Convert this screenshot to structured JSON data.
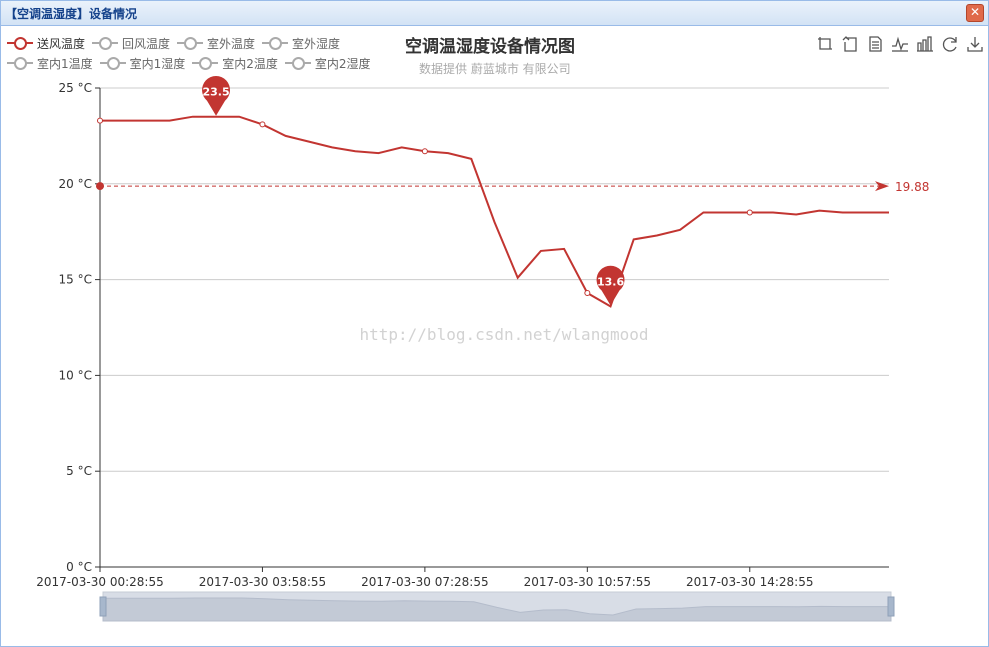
{
  "window": {
    "title": "【空调温湿度】设备情况",
    "close_icon": "close-icon"
  },
  "legend": {
    "items": [
      {
        "label": "送风温度",
        "active": true
      },
      {
        "label": "回风温度",
        "active": false
      },
      {
        "label": "室外温度",
        "active": false
      },
      {
        "label": "室外湿度",
        "active": false
      },
      {
        "label": "室内1温度",
        "active": false
      },
      {
        "label": "室内1湿度",
        "active": false
      },
      {
        "label": "室内2温度",
        "active": false
      },
      {
        "label": "室内2湿度",
        "active": false
      }
    ]
  },
  "toolbox": [
    "data-zoom-icon",
    "zoom-reset-icon",
    "data-view-icon",
    "line-chart-icon",
    "bar-chart-icon",
    "restore-icon",
    "save-image-icon"
  ],
  "watermark": "http://blog.csdn.net/wlangmood",
  "colors": {
    "series": "#c23531",
    "axis": "#333333",
    "grid": "#cccccc"
  },
  "chart_data": {
    "type": "line",
    "title": "空调温湿度设备情况图",
    "subtitle": "数据提供 蔚蓝城市 有限公司",
    "y_ticks": [
      "0 °C",
      "5 °C",
      "10 °C",
      "15 °C",
      "20 °C",
      "25 °C"
    ],
    "ylim": [
      0,
      25
    ],
    "x_tick_labels": [
      "2017-03-30 00:28:55",
      "2017-03-30 03:58:55",
      "2017-03-30 07:28:55",
      "2017-03-30 10:57:55",
      "2017-03-30 14:28:55"
    ],
    "series": [
      {
        "name": "送风温度",
        "values": [
          23.3,
          23.3,
          23.3,
          23.3,
          23.5,
          23.5,
          23.5,
          23.1,
          22.5,
          22.2,
          21.9,
          21.7,
          21.6,
          21.9,
          21.7,
          21.6,
          21.3,
          18.0,
          15.1,
          16.5,
          16.6,
          14.3,
          13.6,
          17.1,
          17.3,
          17.6,
          18.5,
          18.5,
          18.5,
          18.5,
          18.4,
          18.6,
          18.5,
          18.5,
          18.5
        ]
      }
    ],
    "mark_points": [
      {
        "label": "23.5",
        "type": "max"
      },
      {
        "label": "13.6",
        "type": "min"
      }
    ],
    "mark_line": {
      "label": "19.88",
      "value": 19.88,
      "type": "average"
    },
    "grid": true,
    "legend_position": "top-left",
    "data_zoom": {
      "start": 0,
      "end": 100
    }
  }
}
